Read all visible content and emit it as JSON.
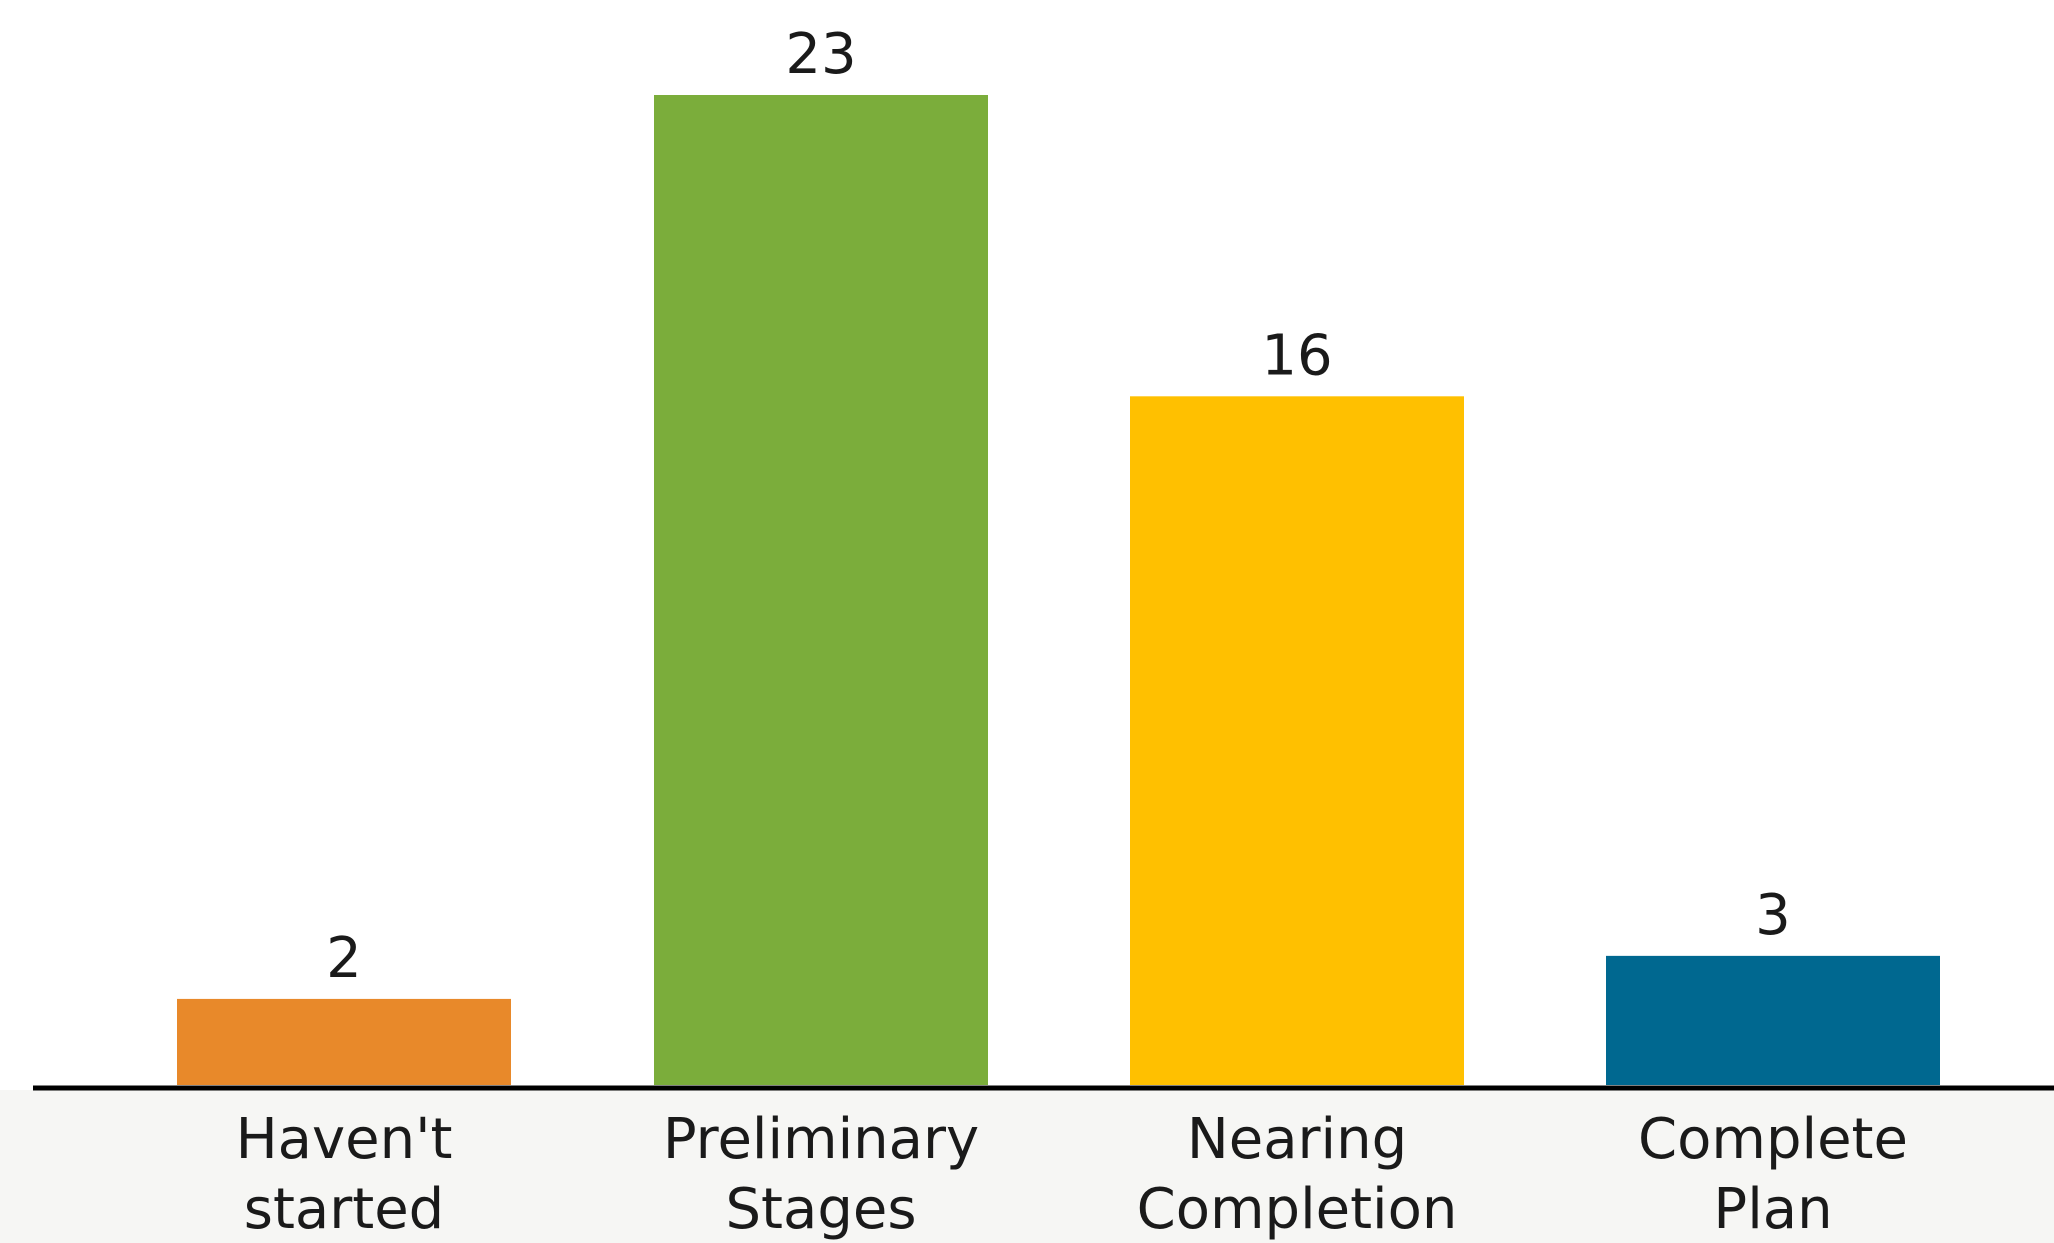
{
  "chart_data": {
    "type": "bar",
    "categories": [
      [
        "Haven't",
        "started"
      ],
      [
        "Preliminary",
        "Stages"
      ],
      [
        "Nearing",
        "Completion"
      ],
      [
        "Complete",
        "Plan"
      ]
    ],
    "values": [
      2,
      23,
      16,
      3
    ],
    "colors": [
      "#E8892A",
      "#7BAD3B",
      "#FFC000",
      "#006890"
    ],
    "data_labels": [
      "2",
      "23",
      "16",
      "3"
    ],
    "title": "",
    "xlabel": "",
    "ylabel": "",
    "ylim": [
      0,
      23
    ],
    "grid": false,
    "legend": "none"
  }
}
